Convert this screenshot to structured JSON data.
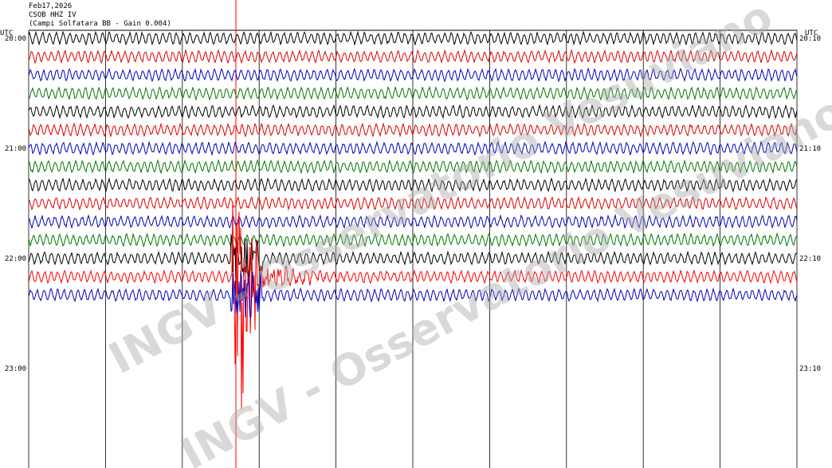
{
  "header": {
    "date": "Feb17,2026",
    "station": "CSOB HHZ IV",
    "description": "(Campi Solfatara BB  - Gain 0.004)"
  },
  "left_axis": {
    "unit": "UTC",
    "labels": [
      "20:00",
      "21:00",
      "22:00",
      "23:00"
    ]
  },
  "right_axis": {
    "unit": "UTC",
    "labels": [
      "20:10",
      "21:10",
      "22:10",
      "23:10"
    ]
  },
  "watermark": "INGV - Osservatorio Vesuviano"
}
